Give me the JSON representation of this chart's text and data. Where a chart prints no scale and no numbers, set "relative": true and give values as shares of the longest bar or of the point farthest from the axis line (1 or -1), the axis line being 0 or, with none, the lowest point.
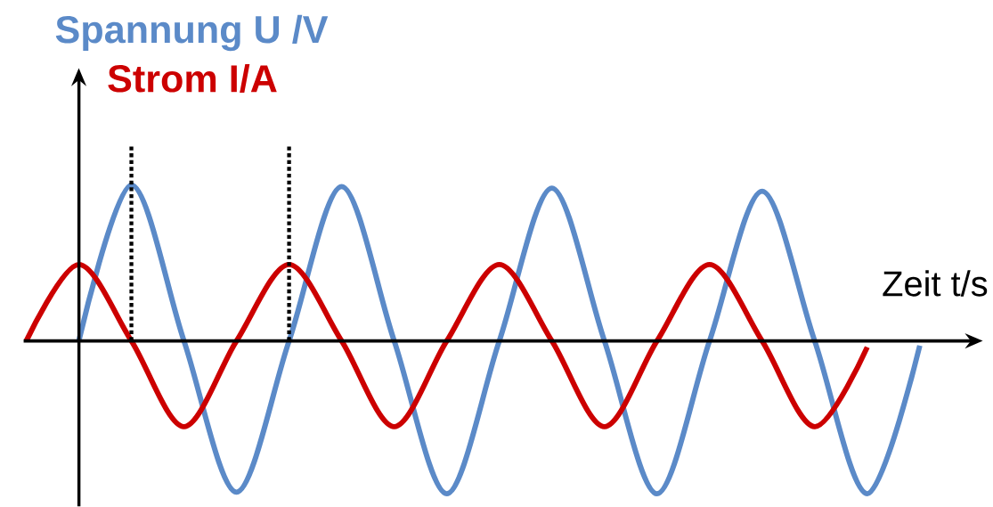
{
  "chart_data": {
    "type": "line",
    "relative": true,
    "xlabel": "Zeit t/s",
    "categories": [
      null,
      null,
      null,
      null,
      null,
      null,
      null,
      null,
      null,
      null,
      null,
      null,
      null,
      null,
      null,
      null,
      null,
      null
    ],
    "series": [
      {
        "name": "Spannung U /V",
        "color": "#5b8ac8",
        "values": [
          null,
          0,
          1,
          0,
          -0.97,
          0,
          0.99,
          0,
          -0.98,
          0,
          0.98,
          0,
          -0.98,
          0,
          0.96,
          0,
          -0.98,
          -0.03
        ]
      },
      {
        "name": "Strom I/A",
        "color": "#cc0000",
        "values": [
          0,
          0.49,
          0,
          -0.55,
          0,
          0.49,
          0,
          -0.55,
          0,
          0.49,
          0,
          -0.55,
          0,
          0.49,
          0,
          -0.55,
          -0.04,
          null
        ]
      }
    ]
  }
}
